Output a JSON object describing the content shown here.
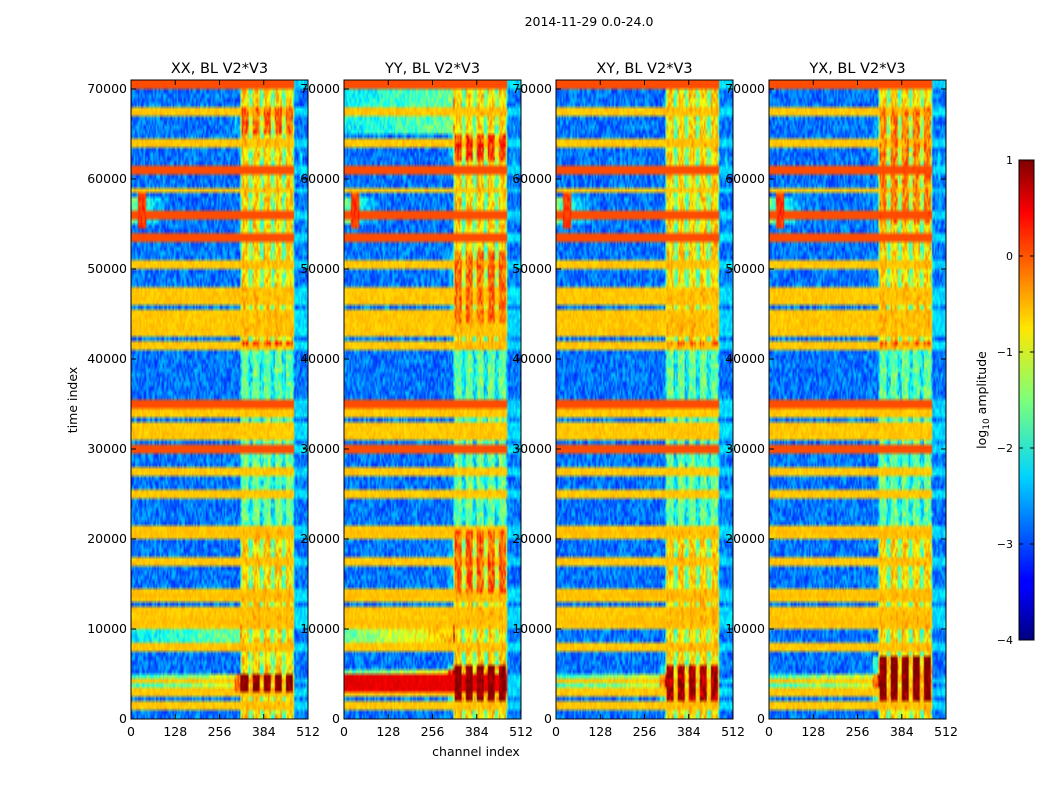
{
  "figure_title": "2014-11-29 0.0-24.0",
  "chart_data": {
    "type": "heatmap",
    "panels": [
      {
        "title": "XX, BL V2*V3",
        "pol": "XX",
        "bright_bands": [
          [
            320,
            340
          ],
          [
            352,
            372
          ],
          [
            384,
            404
          ],
          [
            416,
            436
          ],
          [
            448,
            468
          ]
        ],
        "extra_hot": [
          [
            3000,
            5200,
            1.0,
            0
          ],
          [
            41500,
            42200,
            0.45,
            0
          ],
          [
            65000,
            68000,
            0.35,
            0
          ]
        ],
        "full_width_hot": [],
        "left_glow": [
          [
            8000,
            10500,
            0.25
          ],
          [
            3000,
            5000,
            0.35
          ]
        ]
      },
      {
        "title": "YY, BL V2*V3",
        "pol": "YY",
        "bright_bands": [
          [
            320,
            340
          ],
          [
            352,
            372
          ],
          [
            384,
            404
          ],
          [
            416,
            436
          ],
          [
            448,
            468
          ]
        ],
        "extra_hot": [
          [
            2000,
            6000,
            1.0,
            0
          ],
          [
            14000,
            21000,
            0.35,
            0
          ],
          [
            44000,
            52000,
            0.3,
            0
          ],
          [
            62000,
            65000,
            0.45,
            0
          ]
        ],
        "full_width_hot": [
          [
            3000,
            4800,
            0.95
          ]
        ],
        "left_glow": [
          [
            8500,
            10500,
            0.45
          ],
          [
            4800,
            5500,
            0.4
          ],
          [
            65000,
            70000,
            0.25
          ]
        ]
      },
      {
        "title": "XY, BL V2*V3",
        "pol": "XY",
        "bright_bands": [
          [
            320,
            340
          ],
          [
            352,
            372
          ],
          [
            384,
            404
          ],
          [
            416,
            436
          ],
          [
            448,
            468
          ]
        ],
        "extra_hot": [
          [
            2000,
            6000,
            0.85,
            0
          ],
          [
            41500,
            42200,
            0.3,
            0
          ]
        ],
        "full_width_hot": [],
        "left_glow": [
          [
            3500,
            4800,
            0.35
          ]
        ]
      },
      {
        "title": "YX, BL V2*V3",
        "pol": "YX",
        "bright_bands": [
          [
            320,
            340
          ],
          [
            352,
            372
          ],
          [
            384,
            404
          ],
          [
            416,
            436
          ],
          [
            448,
            468
          ]
        ],
        "extra_hot": [
          [
            2000,
            7000,
            1.0,
            0
          ],
          [
            41500,
            42200,
            0.35,
            0
          ],
          [
            55000,
            68000,
            0.25,
            0
          ]
        ],
        "full_width_hot": [],
        "left_glow": [
          [
            3500,
            4800,
            0.35
          ]
        ]
      }
    ],
    "xlabel": "channel index",
    "ylabel": "time index",
    "xlim": [
      0,
      512
    ],
    "ylim": [
      0,
      71000
    ],
    "xticks": [
      0,
      128,
      256,
      384,
      512
    ],
    "yticks": [
      0,
      10000,
      20000,
      30000,
      40000,
      50000,
      60000,
      70000
    ],
    "colorbar": {
      "label": "log",
      "label_sub": "10",
      "label_rest": " amplitude",
      "range": [
        -4,
        1
      ],
      "ticks": [
        1,
        0,
        -1,
        -2,
        -3,
        -4
      ],
      "tick_labels": [
        "1",
        "0",
        "−1",
        "−2",
        "−3",
        "−4"
      ]
    },
    "rfi_rows": [
      1500,
      3000,
      4200,
      8000,
      10500,
      11000,
      12000,
      13500,
      14000,
      17500,
      20500,
      21000,
      25000,
      27500,
      29800,
      30000,
      30300,
      31500,
      32500,
      34000,
      35000,
      41500,
      43000,
      44000,
      45000,
      46500,
      47500,
      50500,
      53500,
      56000,
      58800,
      61000,
      64000,
      67500,
      70500
    ],
    "strong_rows": [
      29800,
      30000,
      30300,
      35000,
      53500,
      56000,
      61000,
      70500
    ],
    "point_source": {
      "channel": 32,
      "time_range": [
        54500,
        58500
      ]
    },
    "right_blob": {
      "channel": 492,
      "time": 61500
    },
    "colormap": "jet"
  }
}
